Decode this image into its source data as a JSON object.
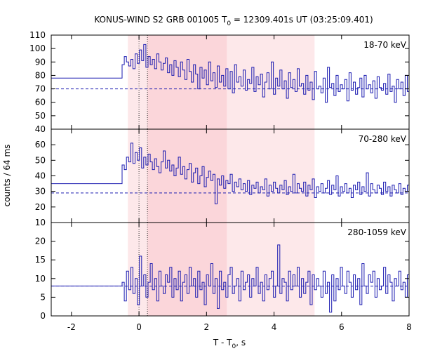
{
  "chart_data": {
    "type": "line",
    "title": "KONUS-WIND S2 GRB 001005 T",
    "title_sub": "0",
    "title_tail": " = 12309.401s UT (03:25:09.401)",
    "xlabel": "T - T",
    "xlabel_sub": "0",
    "xlabel_tail": ", s",
    "ylabel": "counts / 64 ms",
    "xlim": [
      -2.6,
      8.0
    ],
    "xticks": [
      -2,
      0,
      2,
      4,
      6,
      8
    ],
    "x_tick_labels": [
      "-2",
      "0",
      "2",
      "4",
      "6",
      "8"
    ],
    "binsize": 0.064,
    "prebin_end": -0.5,
    "light_band": [
      -0.33,
      5.2
    ],
    "dark_band": [
      0.25,
      2.6
    ],
    "vlines": [
      0.0,
      0.25
    ],
    "line_color": "#1a1ab0",
    "band_light_color": "#fde8ea",
    "band_dark_color": "#fbd6da",
    "panels": [
      {
        "label": "18-70 keV",
        "ylim": [
          40,
          110
        ],
        "yticks": [
          40,
          50,
          60,
          70,
          80,
          90,
          100,
          110
        ],
        "y_tick_labels": [
          "40",
          "50",
          "60",
          "70",
          "80",
          "90",
          "100",
          "110"
        ],
        "background": 70,
        "prebin_value": 78,
        "values": [
          88,
          94,
          90,
          87,
          92,
          85,
          96,
          89,
          99,
          91,
          103,
          86,
          94,
          88,
          92,
          85,
          96,
          90,
          84,
          89,
          93,
          82,
          88,
          80,
          91,
          86,
          79,
          90,
          84,
          77,
          92,
          83,
          75,
          88,
          81,
          70,
          86,
          78,
          84,
          73,
          90,
          76,
          82,
          71,
          87,
          75,
          80,
          72,
          85,
          70,
          83,
          67,
          88,
          75,
          79,
          72,
          84,
          69,
          77,
          74,
          86,
          68,
          79,
          73,
          81,
          64,
          75,
          82,
          70,
          90,
          66,
          78,
          72,
          84,
          70,
          76,
          63,
          82,
          71,
          77,
          68,
          85,
          72,
          74,
          66,
          80,
          69,
          75,
          62,
          83,
          70,
          72,
          67,
          78,
          60,
          86,
          71,
          74,
          65,
          80,
          68,
          73,
          70,
          77,
          61,
          82,
          69,
          75,
          66,
          71,
          78,
          64,
          80,
          70,
          73,
          67,
          76,
          63,
          79,
          71,
          69,
          74,
          66,
          81,
          68,
          72,
          60,
          77,
          70,
          75,
          65,
          80,
          68,
          71,
          73,
          66,
          78,
          62,
          74,
          70,
          76,
          67,
          79,
          64,
          72,
          69,
          75,
          61,
          73,
          70
        ]
      },
      {
        "label": "70-280 keV",
        "ylim": [
          10,
          70
        ],
        "yticks": [
          10,
          20,
          30,
          40,
          50,
          60
        ],
        "y_tick_labels": [
          "10",
          "20",
          "30",
          "40",
          "50",
          "60"
        ],
        "background": 29,
        "prebin_value": 35,
        "values": [
          47,
          44,
          52,
          49,
          61,
          48,
          55,
          50,
          58,
          45,
          52,
          47,
          54,
          49,
          44,
          51,
          46,
          42,
          49,
          56,
          45,
          50,
          43,
          47,
          40,
          45,
          52,
          41,
          46,
          38,
          44,
          48,
          36,
          42,
          45,
          35,
          40,
          46,
          33,
          39,
          43,
          37,
          41,
          22,
          38,
          34,
          40,
          32,
          37,
          35,
          41,
          30,
          36,
          33,
          38,
          31,
          35,
          30,
          37,
          28,
          34,
          32,
          36,
          29,
          33,
          31,
          38,
          27,
          34,
          30,
          36,
          32,
          29,
          34,
          31,
          37,
          28,
          33,
          30,
          41,
          29,
          35,
          32,
          30,
          36,
          27,
          34,
          31,
          38,
          26,
          33,
          30,
          35,
          29,
          32,
          37,
          28,
          34,
          31,
          40,
          27,
          33,
          30,
          35,
          29,
          32,
          26,
          34,
          31,
          36,
          28,
          33,
          30,
          42,
          27,
          35,
          31,
          29,
          34,
          32,
          28,
          36,
          30,
          33,
          27,
          34,
          31,
          29,
          35,
          28,
          32,
          30,
          34,
          27,
          31,
          33,
          29,
          35,
          28,
          32,
          30,
          34,
          24,
          31,
          33,
          29,
          40,
          28,
          32,
          30
        ]
      },
      {
        "label": "280-1059 keV",
        "ylim": [
          0,
          25
        ],
        "yticks": [
          0,
          5,
          10,
          15,
          20
        ],
        "y_tick_labels": [
          "0",
          "5",
          "10",
          "15",
          "20"
        ],
        "background": 8,
        "prebin_value": 8,
        "values": [
          9,
          4,
          12,
          7,
          13,
          6,
          10,
          3,
          16,
          8,
          11,
          5,
          9,
          14,
          7,
          10,
          4,
          12,
          8,
          6,
          11,
          9,
          13,
          5,
          10,
          7,
          12,
          4,
          9,
          11,
          6,
          13,
          8,
          10,
          5,
          12,
          7,
          9,
          3,
          11,
          8,
          14,
          6,
          10,
          2,
          12,
          7,
          9,
          5,
          11,
          13,
          6,
          8,
          10,
          4,
          12,
          7,
          9,
          11,
          5,
          10,
          8,
          13,
          6,
          9,
          4,
          11,
          7,
          10,
          12,
          5,
          8,
          19,
          6,
          10,
          9,
          4,
          12,
          7,
          11,
          8,
          13,
          5,
          10,
          6,
          9,
          12,
          3,
          11,
          7,
          10,
          8,
          5,
          12,
          6,
          9,
          1,
          11,
          4,
          10,
          7,
          13,
          8,
          6,
          12,
          9,
          5,
          11,
          7,
          10,
          3,
          14,
          8,
          6,
          11,
          9,
          12,
          5,
          10,
          7,
          8,
          13,
          6,
          11,
          9,
          4,
          10,
          8,
          12,
          7,
          9,
          5,
          11,
          6,
          10,
          8,
          13,
          7,
          9,
          11,
          5,
          10,
          8,
          12,
          6,
          9,
          7,
          11,
          8,
          10
        ]
      }
    ]
  }
}
